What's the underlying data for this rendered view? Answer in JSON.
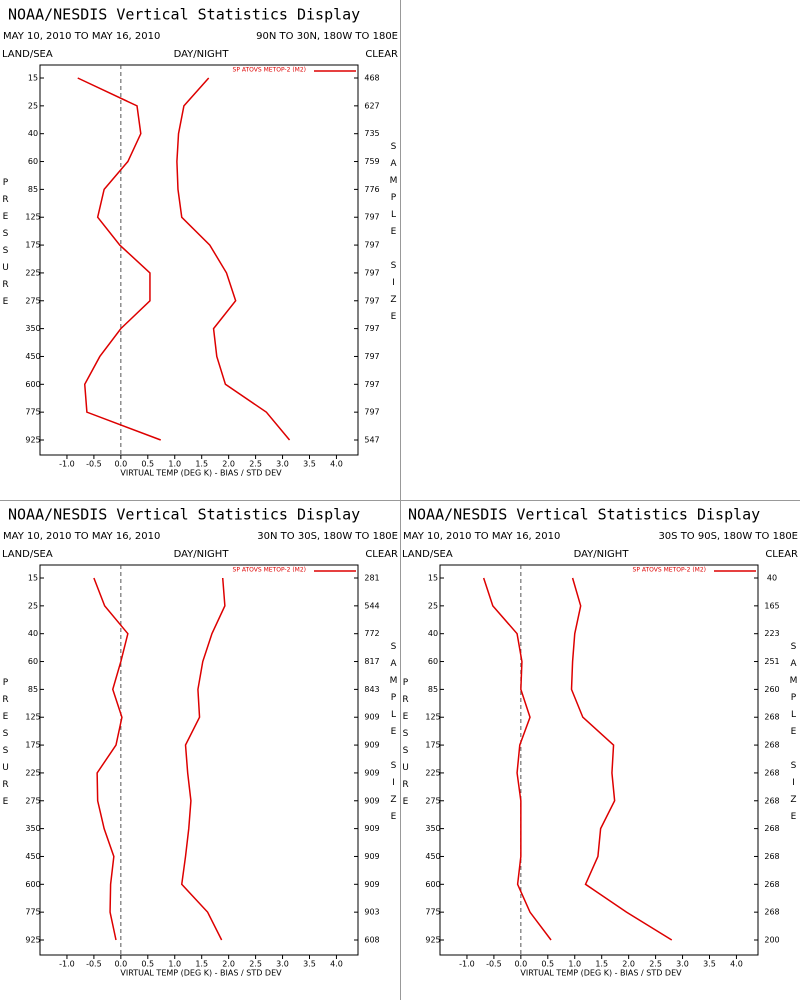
{
  "chart_data": [
    {
      "type": "line",
      "title": "NOAA/NESDIS Vertical Statistics Display",
      "date_range": "MAY 10, 2010 TO MAY 16, 2010",
      "region": "90N TO 30N, 180W TO 180E",
      "land_sea": "LAND/SEA",
      "day_night": "DAY/NIGHT",
      "clear": "CLEAR",
      "y_label": "PRESSURE",
      "y2_label": "SAMPLE SIZE",
      "x_label": "VIRTUAL TEMP (DEG K) - BIAS / STD DEV",
      "legend": "SP ATOVS METOP-2 (M2)",
      "categories": [
        15,
        25,
        40,
        60,
        85,
        125,
        175,
        225,
        275,
        350,
        450,
        600,
        775,
        925
      ],
      "sample_sizes": [
        468,
        627,
        735,
        759,
        776,
        797,
        797,
        797,
        797,
        797,
        797,
        797,
        797,
        547
      ],
      "series": [
        {
          "color": "#dd0000",
          "values": [
            -0.8,
            0.3,
            0.37,
            0.13,
            -0.31,
            -0.43,
            -0.02,
            0.54,
            0.54,
            0,
            -0.39,
            -0.67,
            -0.63,
            0.74
          ]
        },
        {
          "color": "#dd0000",
          "values": [
            1.63,
            1.17,
            1.07,
            1.04,
            1.06,
            1.13,
            1.65,
            1.96,
            2.13,
            1.72,
            1.78,
            1.94,
            2.7,
            3.13
          ]
        }
      ],
      "xlim": [
        -1.5,
        4.4
      ],
      "xticks": [
        {
          "value": -1,
          "label": "-1.0"
        },
        -0.5,
        {
          "value": 0,
          "label": "0.0"
        },
        0.5,
        {
          "value": 1,
          "label": "1.0"
        },
        1.5,
        {
          "value": 2,
          "label": "2.0"
        },
        2.5,
        {
          "value": 3,
          "label": "3.0"
        },
        3.5,
        {
          "value": 4,
          "label": "4.0"
        }
      ]
    },
    {
      "type": "line",
      "title": "NOAA/NESDIS Vertical Statistics Display",
      "date_range": "MAY 10, 2010 TO MAY 16, 2010",
      "region": "30N TO 30S, 180W TO 180E",
      "land_sea": "LAND/SEA",
      "day_night": "DAY/NIGHT",
      "clear": "CLEAR",
      "y_label": "PRESSURE",
      "y2_label": "SAMPLE SIZE",
      "x_label": "VIRTUAL TEMP (DEG K) - BIAS / STD DEV",
      "legend": "SP ATOVS METOP-2 (M2)",
      "categories": [
        15,
        25,
        40,
        60,
        85,
        125,
        175,
        225,
        275,
        350,
        450,
        600,
        775,
        925
      ],
      "sample_sizes": [
        281,
        544,
        772,
        817,
        843,
        909,
        909,
        909,
        909,
        909,
        909,
        909,
        903,
        608
      ],
      "series": [
        {
          "color": "#dd0000",
          "values": [
            -0.5,
            -0.3,
            0.13,
            0,
            -0.15,
            0.02,
            -0.09,
            -0.44,
            -0.43,
            -0.31,
            -0.13,
            -0.19,
            -0.2,
            -0.09
          ]
        },
        {
          "color": "#dd0000",
          "values": [
            1.89,
            1.93,
            1.69,
            1.52,
            1.43,
            1.46,
            1.2,
            1.24,
            1.3,
            1.26,
            1.2,
            1.13,
            1.61,
            1.87
          ]
        }
      ],
      "xlim": [
        -1.5,
        4.4
      ],
      "xticks": [
        {
          "value": -1,
          "label": "-1.0"
        },
        -0.5,
        {
          "value": 0,
          "label": "0.0"
        },
        0.5,
        {
          "value": 1,
          "label": "1.0"
        },
        1.5,
        {
          "value": 2,
          "label": "2.0"
        },
        2.5,
        {
          "value": 3,
          "label": "3.0"
        },
        3.5,
        {
          "value": 4,
          "label": "4.0"
        }
      ]
    },
    {
      "type": "line",
      "title": "NOAA/NESDIS Vertical Statistics Display",
      "date_range": "MAY 10, 2010 TO MAY 16, 2010",
      "region": "30S TO 90S, 180W TO 180E",
      "land_sea": "LAND/SEA",
      "day_night": "DAY/NIGHT",
      "clear": "CLEAR",
      "y_label": "PRESSURE",
      "y2_label": "SAMPLE SIZE",
      "x_label": "VIRTUAL TEMP (DEG K) - BIAS / STD DEV",
      "legend": "SP ATOVS METOP-2 (M2)",
      "categories": [
        15,
        25,
        40,
        60,
        85,
        125,
        175,
        225,
        275,
        350,
        450,
        600,
        775,
        925
      ],
      "sample_sizes": [
        40,
        165,
        223,
        251,
        260,
        268,
        268,
        268,
        268,
        268,
        268,
        268,
        268,
        200
      ],
      "series": [
        {
          "color": "#dd0000",
          "values": [
            -0.69,
            -0.52,
            -0.07,
            0.02,
            0,
            0.17,
            -0.02,
            -0.07,
            0,
            0,
            0,
            -0.06,
            0.17,
            0.56
          ]
        },
        {
          "color": "#dd0000",
          "values": [
            0.96,
            1.11,
            1,
            0.96,
            0.94,
            1.15,
            1.72,
            1.69,
            1.74,
            1.48,
            1.43,
            1.2,
            1.96,
            2.8
          ]
        }
      ],
      "xlim": [
        -1.5,
        4.4
      ],
      "xticks": [
        {
          "value": -1,
          "label": "-1.0"
        },
        -0.5,
        {
          "value": 0,
          "label": "0.0"
        },
        0.5,
        {
          "value": 1,
          "label": "1.0"
        },
        1.5,
        {
          "value": 2,
          "label": "2.0"
        },
        2.5,
        {
          "value": 3,
          "label": "3.0"
        },
        3.5,
        {
          "value": 4,
          "label": "4.0"
        }
      ]
    }
  ]
}
